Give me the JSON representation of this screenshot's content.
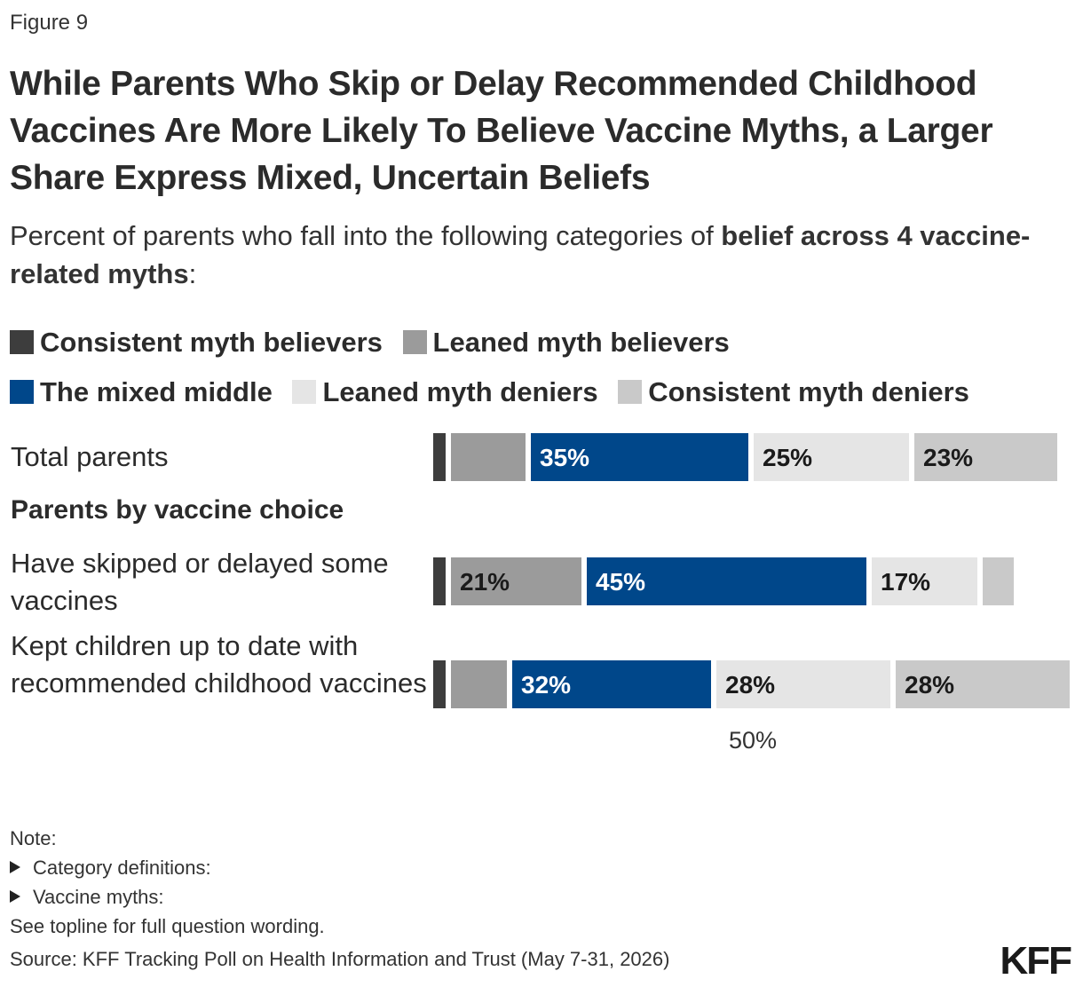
{
  "figure_label": "Figure 9",
  "title": "While Parents Who Skip or Delay Recommended Childhood Vaccines Are More Likely To Believe Vaccine Myths, a Larger Share Express Mixed, Uncertain Beliefs",
  "subtitle": {
    "lead": "Percent of parents who fall into the following categories of ",
    "bold": "belief across 4 vaccine-related myths",
    "tail": ":"
  },
  "colors": {
    "consistent_believers": "#3d3d3d",
    "leaned_believers": "#9b9b9b",
    "mixed_middle": "#00478a",
    "leaned_deniers": "#e5e5e5",
    "consistent_deniers": "#c9c9c9"
  },
  "chart_data": {
    "type": "bar",
    "stacked": true,
    "orientation": "horizontal",
    "series": [
      {
        "name": "Consistent myth believers",
        "values": [
          2,
          2,
          2
        ]
      },
      {
        "name": "Leaned myth believers",
        "values": [
          12,
          21,
          9
        ]
      },
      {
        "name": "The mixed middle",
        "values": [
          35,
          45,
          32
        ]
      },
      {
        "name": "Leaned myth deniers",
        "values": [
          25,
          17,
          28
        ]
      },
      {
        "name": "Consistent myth deniers",
        "values": [
          23,
          5,
          28
        ]
      }
    ],
    "data_labels": [
      [
        "",
        "",
        "35%",
        "25%",
        "23%"
      ],
      [
        "",
        "21%",
        "45%",
        "17%",
        ""
      ],
      [
        "",
        "",
        "32%",
        "28%",
        "28%"
      ]
    ],
    "categories": [
      "Total parents",
      "Have skipped or delayed some vaccines",
      "Kept children up to date with recommended childhood vaccines"
    ],
    "group_heading": "Parents by vaccine choice",
    "x_tick": "50%",
    "xlim": [
      0,
      100
    ]
  },
  "notes": {
    "heading": "Note:",
    "items": [
      "Category definitions:",
      "Vaccine myths:"
    ],
    "footer": "See topline for full question wording."
  },
  "source": "Source: KFF Tracking Poll on Health Information and Trust (May 7-31, 2026)",
  "logo": "KFF"
}
